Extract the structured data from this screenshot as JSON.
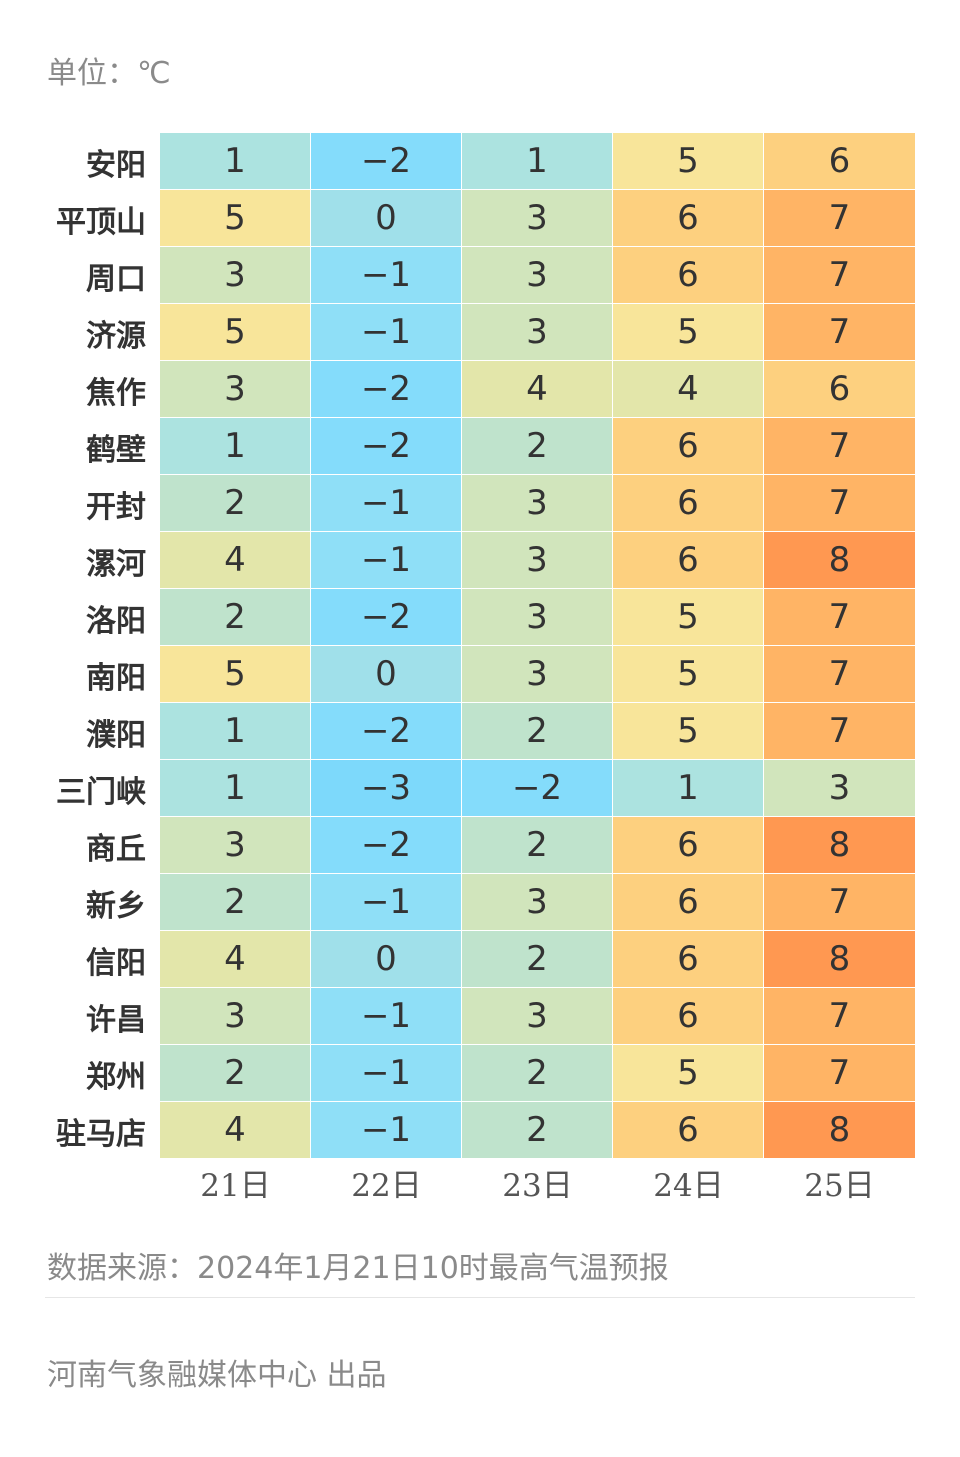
{
  "unit_label": "单位：℃",
  "source_label": "数据来源：2024年1月21日10时最高气温预报",
  "credit_label": "河南气象融媒体中心 出品",
  "colors": {
    "-3": "#7dd9fb",
    "-2": "#84dcfb",
    "-1": "#8fdff7",
    "0": "#a0e0ea",
    "1": "#ace3e0",
    "2": "#bfe3cc",
    "3": "#d1e5bc",
    "4": "#e3e6aa",
    "5": "#f8e59a",
    "6": "#fdd07f",
    "7": "#ffb465",
    "8": "#ff9851"
  },
  "chart_data": {
    "type": "heatmap",
    "title": "",
    "columns": [
      "21日",
      "22日",
      "23日",
      "24日",
      "25日"
    ],
    "rows": [
      {
        "city": "安阳",
        "values": [
          1,
          -2,
          1,
          5,
          6
        ]
      },
      {
        "city": "平顶山",
        "values": [
          5,
          0,
          3,
          6,
          7
        ]
      },
      {
        "city": "周口",
        "values": [
          3,
          -1,
          3,
          6,
          7
        ]
      },
      {
        "city": "济源",
        "values": [
          5,
          -1,
          3,
          5,
          7
        ]
      },
      {
        "city": "焦作",
        "values": [
          3,
          -2,
          4,
          4,
          6
        ]
      },
      {
        "city": "鹤壁",
        "values": [
          1,
          -2,
          2,
          6,
          7
        ]
      },
      {
        "city": "开封",
        "values": [
          2,
          -1,
          3,
          6,
          7
        ]
      },
      {
        "city": "漯河",
        "values": [
          4,
          -1,
          3,
          6,
          8
        ]
      },
      {
        "city": "洛阳",
        "values": [
          2,
          -2,
          3,
          5,
          7
        ]
      },
      {
        "city": "南阳",
        "values": [
          5,
          0,
          3,
          5,
          7
        ]
      },
      {
        "city": "濮阳",
        "values": [
          1,
          -2,
          2,
          5,
          7
        ]
      },
      {
        "city": "三门峡",
        "values": [
          1,
          -3,
          -2,
          1,
          3
        ]
      },
      {
        "city": "商丘",
        "values": [
          3,
          -2,
          2,
          6,
          8
        ]
      },
      {
        "city": "新乡",
        "values": [
          2,
          -1,
          3,
          6,
          7
        ]
      },
      {
        "city": "信阳",
        "values": [
          4,
          0,
          2,
          6,
          8
        ]
      },
      {
        "city": "许昌",
        "values": [
          3,
          -1,
          3,
          6,
          7
        ]
      },
      {
        "city": "郑州",
        "values": [
          2,
          -1,
          2,
          5,
          7
        ]
      },
      {
        "city": "驻马店",
        "values": [
          4,
          -1,
          2,
          6,
          8
        ]
      }
    ]
  }
}
